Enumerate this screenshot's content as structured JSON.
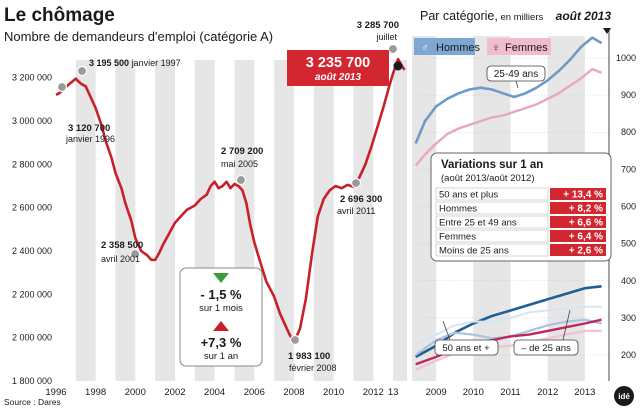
{
  "header": {
    "title": "Le chômage",
    "subtitle": "Nombre de demandeurs d'emploi (catégorie A)",
    "right_title": "Par catégorie,",
    "right_title_unit": " en milliers",
    "right_date": "août 2013"
  },
  "highlight": {
    "value": "3 235 700",
    "date": "août 2013"
  },
  "legend": {
    "men": "Hommes",
    "women": "Femmes"
  },
  "variation_box": {
    "down_value": "- 1,5 %",
    "down_label": "sur 1 mois",
    "up_value": "+7,3 %",
    "up_label": "sur 1 an",
    "down_color": "#3a9c3a",
    "up_color": "#c8202a"
  },
  "variations_table": {
    "title": "Variations sur 1 an",
    "subtitle": "(août 2013/août 2012)",
    "rows": [
      {
        "label": "50 ans et plus",
        "value": "+ 13,4 %"
      },
      {
        "label": "Hommes",
        "value": "+ 8,2 %"
      },
      {
        "label": "Entre 25 et 49 ans",
        "value": "+ 6,6 %"
      },
      {
        "label": "Femmes",
        "value": "+ 6,4 %"
      },
      {
        "label": "Moins de 25 ans",
        "value": "+ 2,6 %"
      }
    ]
  },
  "source": "Source : Dares",
  "logo": "idé",
  "colors": {
    "main_line": "#c8202a",
    "men": "#6e9ac8",
    "women": "#e8a6c0",
    "fifty_plus": "#1f5f96",
    "under25": "#a8c4e0",
    "accent": "#d22630"
  },
  "chart_data": [
    {
      "type": "line",
      "title": "Le chômage",
      "subtitle": "Nombre de demandeurs d'emploi (catégorie A)",
      "ylim": [
        1800000,
        3300000
      ],
      "xlim": [
        1995.8,
        2013.7
      ],
      "y_ticks": [
        "1 800 000",
        "2 000 000",
        "2 200 000",
        "2 400 000",
        "2 600 000",
        "2 800 000",
        "3 000 000",
        "3 200 000"
      ],
      "y_tick_values": [
        1800000,
        2000000,
        2200000,
        2400000,
        2600000,
        2800000,
        3000000,
        3200000
      ],
      "x_ticks": [
        "1996",
        "1998",
        "2000",
        "2002",
        "2004",
        "2006",
        "2008",
        "2010",
        "2012",
        "13"
      ],
      "x_tick_values": [
        1996,
        1998,
        2000,
        2002,
        2004,
        2006,
        2008,
        2010,
        2012,
        2013
      ],
      "grid": "alternating vertical bands",
      "series": [
        {
          "x": [
            1996.0,
            1996.2,
            1996.4,
            1996.6,
            1996.8,
            1997.0,
            1997.1,
            1997.3,
            1997.5,
            1997.7,
            1998.0,
            1998.3,
            1998.5,
            1998.8,
            1999.0,
            1999.3,
            1999.5,
            1999.8,
            2000.0,
            2000.3,
            2000.6,
            2000.8,
            2001.0,
            2001.2,
            2001.4,
            2001.7,
            2002.0,
            2002.3,
            2002.6,
            2003.0,
            2003.3,
            2003.6,
            2003.8,
            2004.0,
            2004.2,
            2004.4,
            2004.6,
            2004.8,
            2005.0,
            2005.2,
            2005.4,
            2005.6,
            2005.8,
            2006.0,
            2006.3,
            2006.6,
            2007.0,
            2007.3,
            2007.6,
            2007.8,
            2008.0,
            2008.1,
            2008.3,
            2008.6,
            2008.9,
            2009.2,
            2009.5,
            2009.8,
            2010.1,
            2010.4,
            2010.7,
            2011.0,
            2011.3,
            2011.6,
            2011.9,
            2012.2,
            2012.5,
            2012.8,
            2013.0,
            2013.25,
            2013.4,
            2013.58
          ],
          "y": [
            3120700,
            3130000,
            3150000,
            3165000,
            3180000,
            3195500,
            3185000,
            3170000,
            3160000,
            3120000,
            3060000,
            2980000,
            2910000,
            2830000,
            2760000,
            2690000,
            2620000,
            2540000,
            2460000,
            2400000,
            2380000,
            2360000,
            2358500,
            2390000,
            2430000,
            2480000,
            2530000,
            2560000,
            2590000,
            2610000,
            2640000,
            2660000,
            2700000,
            2720000,
            2690000,
            2700000,
            2720000,
            2690000,
            2709200,
            2700000,
            2680000,
            2620000,
            2520000,
            2440000,
            2350000,
            2260000,
            2190000,
            2110000,
            2050000,
            2010000,
            1983100,
            2000000,
            2040000,
            2180000,
            2380000,
            2560000,
            2640000,
            2680000,
            2700000,
            2690000,
            2705000,
            2696300,
            2740000,
            2800000,
            2880000,
            2970000,
            3060000,
            3160000,
            3220000,
            3285700,
            3260000,
            3235700
          ]
        }
      ],
      "annotations": [
        {
          "value": "3 120 700",
          "label": "janvier 1996"
        },
        {
          "value": "3 195 500",
          "label": "janvier 1997"
        },
        {
          "value": "2 358 500",
          "label": "avril 2001"
        },
        {
          "value": "2 709 200",
          "label": "mai 2005"
        },
        {
          "value": "1 983 100",
          "label": "février 2008"
        },
        {
          "value": "2 696 300",
          "label": "avril 2011"
        },
        {
          "value": "3 285 700",
          "label": "juillet"
        }
      ]
    },
    {
      "type": "line",
      "title": "Par catégorie, en milliers",
      "ylim": [
        130,
        1070
      ],
      "xlim": [
        2008.35,
        2013.65
      ],
      "y_ticks": [
        "100",
        "200",
        "300",
        "400",
        "500",
        "600",
        "700",
        "800",
        "900",
        "1000"
      ],
      "y_tick_values": [
        100,
        200,
        300,
        400,
        500,
        600,
        700,
        800,
        900,
        1000
      ],
      "x_ticks": [
        "2009",
        "2010",
        "2011",
        "2012",
        "2013"
      ],
      "x_tick_values": [
        2009,
        2010,
        2011,
        2012,
        2013
      ],
      "series": [
        {
          "name": "Hommes",
          "x": [
            2008.45,
            2008.7,
            2009.0,
            2009.3,
            2009.6,
            2009.9,
            2010.2,
            2010.5,
            2010.8,
            2011.1,
            2011.4,
            2011.7,
            2012.0,
            2012.3,
            2012.6,
            2012.9,
            2013.2,
            2013.45
          ],
          "y": [
            770,
            830,
            870,
            890,
            905,
            915,
            920,
            915,
            905,
            895,
            905,
            920,
            940,
            965,
            995,
            1030,
            1055,
            1040
          ]
        },
        {
          "name": "Femmes",
          "x": [
            2008.45,
            2008.7,
            2009.0,
            2009.3,
            2009.6,
            2009.9,
            2010.2,
            2010.5,
            2010.8,
            2011.1,
            2011.4,
            2011.7,
            2012.0,
            2012.3,
            2012.6,
            2012.9,
            2013.2,
            2013.45
          ],
          "y": [
            710,
            740,
            770,
            795,
            810,
            820,
            830,
            840,
            845,
            855,
            865,
            875,
            890,
            905,
            925,
            945,
            970,
            960
          ]
        },
        {
          "name": "25-49 ans",
          "x": [
            2008.45,
            2009.0,
            2009.5,
            2010.0,
            2010.5,
            2011.0,
            2011.5,
            2012.0,
            2012.5,
            2013.0,
            2013.45
          ],
          "y": [
            1090,
            1210,
            1270,
            1300,
            1300,
            1290,
            1310,
            1350,
            1410,
            1470,
            1510
          ]
        },
        {
          "name": "50 ans et +",
          "x": [
            2008.45,
            2009.0,
            2009.5,
            2010.0,
            2010.5,
            2011.0,
            2011.5,
            2012.0,
            2012.5,
            2013.0,
            2013.45
          ],
          "y": [
            195,
            225,
            260,
            285,
            305,
            320,
            335,
            350,
            365,
            380,
            385
          ]
        },
        {
          "name": "– de 25 ans",
          "x": [
            2008.45,
            2009.0,
            2009.5,
            2010.0,
            2010.5,
            2011.0,
            2011.5,
            2012.0,
            2012.5,
            2013.0,
            2013.45
          ],
          "y": [
            200,
            240,
            260,
            255,
            245,
            250,
            265,
            280,
            290,
            295,
            285
          ]
        },
        {
          "x": [
            2008.45,
            2009.0,
            2009.5,
            2010.0,
            2010.5,
            2011.0,
            2011.5,
            2012.0,
            2012.5,
            2013.0,
            2013.45
          ],
          "y": [
            230,
            255,
            280,
            290,
            290,
            300,
            315,
            320,
            325,
            330,
            330
          ]
        },
        {
          "x": [
            2008.45,
            2009.0,
            2009.5,
            2010.0,
            2010.5,
            2011.0,
            2011.5,
            2012.0,
            2012.5,
            2013.0,
            2013.45
          ],
          "y": [
            175,
            195,
            215,
            230,
            240,
            250,
            255,
            265,
            275,
            285,
            295
          ]
        },
        {
          "x": [
            2008.45,
            2009.0,
            2009.5,
            2010.0,
            2010.5,
            2011.0,
            2011.5,
            2012.0,
            2012.5,
            2013.0,
            2013.45
          ],
          "y": [
            160,
            185,
            205,
            215,
            220,
            225,
            235,
            245,
            255,
            265,
            265
          ]
        }
      ]
    }
  ]
}
